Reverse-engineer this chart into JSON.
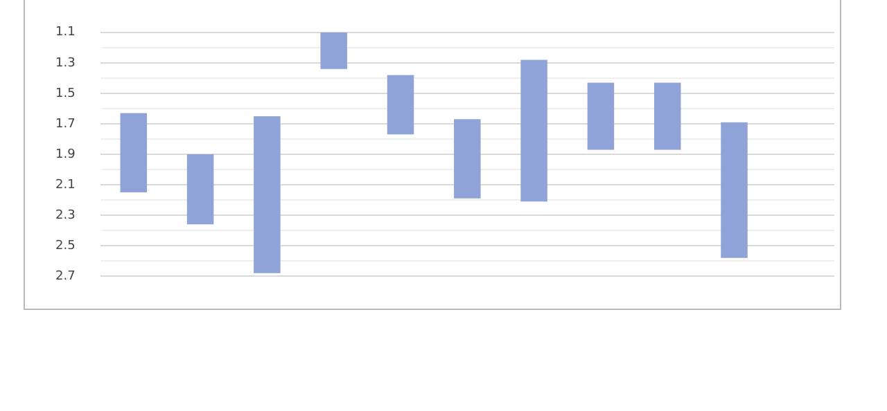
{
  "chart_data": {
    "type": "bar",
    "categories": [
      null,
      null,
      null,
      null,
      null,
      null,
      null,
      null,
      null,
      null,
      null
    ],
    "base": [
      1.63,
      1.9,
      1.65,
      1.1,
      1.38,
      1.67,
      1.28,
      1.43,
      1.43,
      1.69,
      null
    ],
    "values": [
      0.52,
      0.46,
      1.03,
      0.24,
      0.39,
      0.52,
      0.93,
      0.44,
      0.44,
      0.89,
      null
    ],
    "color": "#8fa3d8",
    "ylim": [
      2.7,
      1.1
    ],
    "yticks": [
      1.1,
      {
        "value": 1.2,
        "label": null
      },
      1.3,
      {
        "value": 1.4,
        "label": null
      },
      1.5,
      {
        "value": 1.6,
        "label": null
      },
      1.7,
      {
        "value": 1.8,
        "label": null
      },
      1.9,
      {
        "value": 2.0,
        "label": null
      },
      2.1,
      {
        "value": 2.2,
        "label": null
      },
      2.3,
      {
        "value": 2.4,
        "label": null
      },
      2.5,
      {
        "value": 2.6,
        "label": null
      },
      2.7
    ],
    "grid": "y",
    "legend": false
  }
}
